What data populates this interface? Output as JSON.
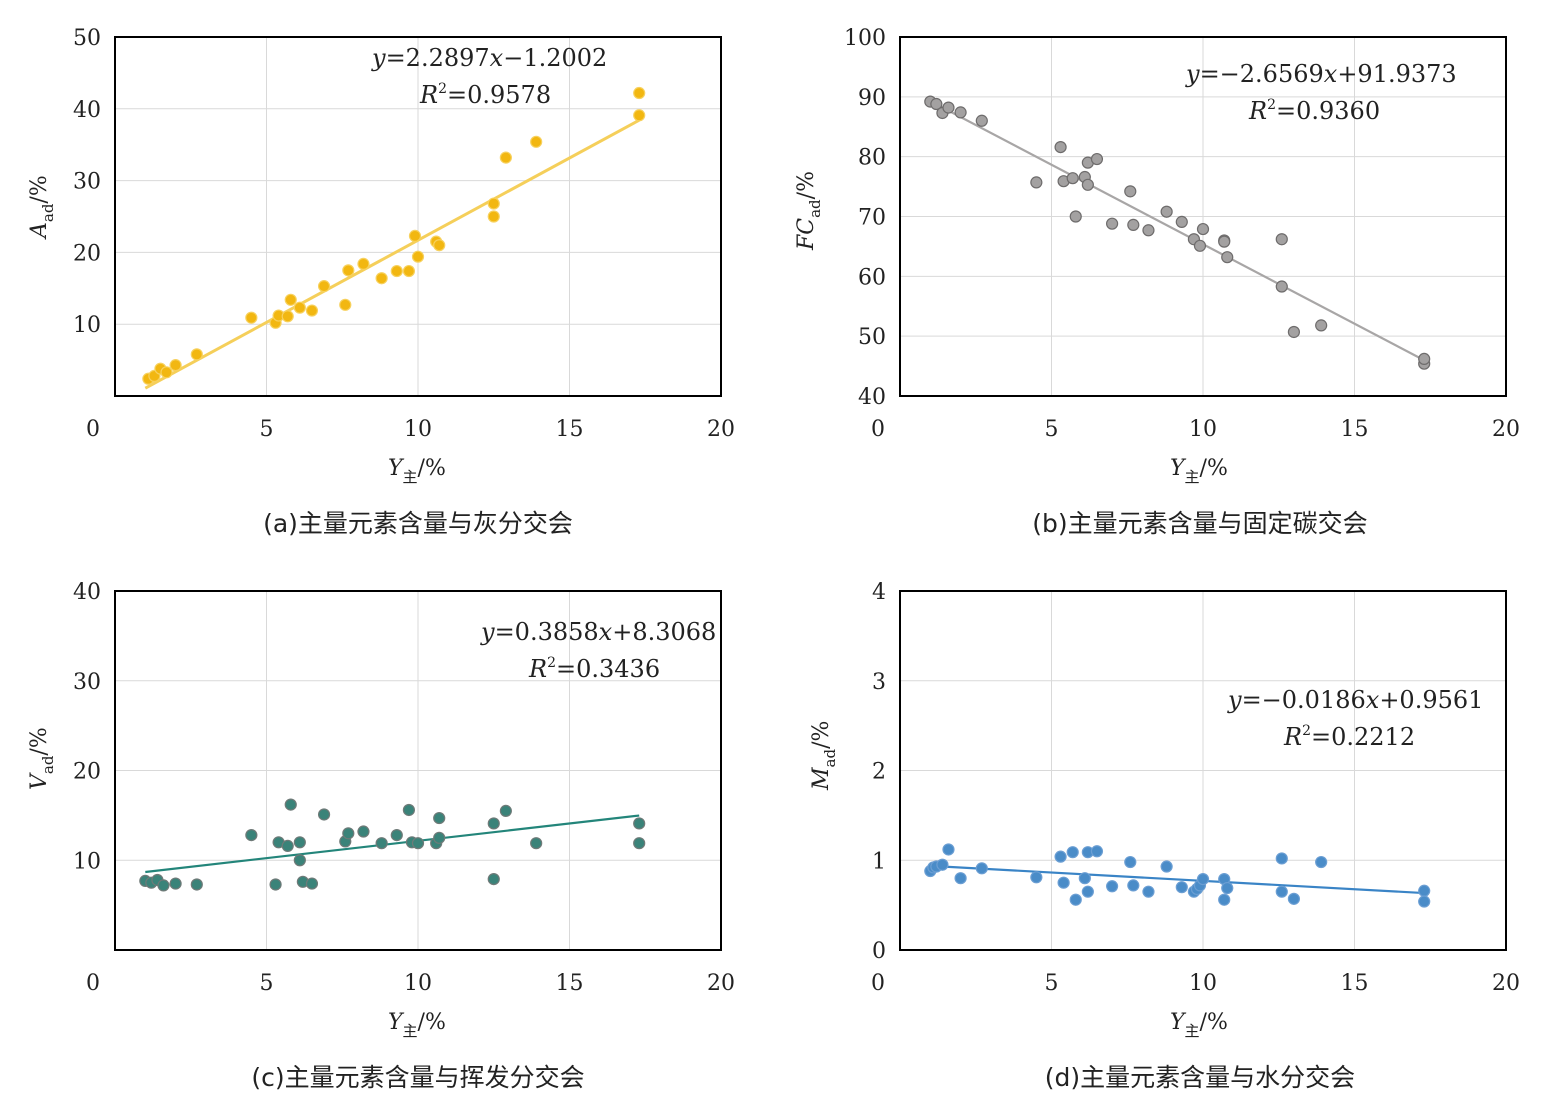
{
  "chart_data": [
    {
      "type": "scatter",
      "title": "(a)主量元素含量与灰分交会",
      "xlabel": {
        "main": "Y",
        "sub": "主",
        "unit": "/%"
      },
      "ylabel": {
        "main": "A",
        "sub": "ad",
        "unit": "/%"
      },
      "xlim": [
        0,
        20
      ],
      "ylim": [
        0,
        50
      ],
      "xticks": [
        "0",
        "5",
        "10",
        "15",
        "20"
      ],
      "yticks": [
        "10",
        "20",
        "30",
        "40",
        "50"
      ],
      "color": "#f2b711",
      "line_color": "#f5cf5a",
      "point_edge": "#f7d15e",
      "equation": {
        "y": "y",
        "eq": "=2.2897",
        "x": "x",
        "rest": "−1.2002"
      },
      "r2": {
        "R": "R",
        "sup": "2",
        "val": "=0.9578"
      },
      "trend": {
        "slope": 2.2897,
        "intercept": -1.2002,
        "x_range": [
          1.0,
          17.3
        ]
      },
      "points": [
        [
          1.1,
          2.4
        ],
        [
          1.3,
          2.8
        ],
        [
          1.5,
          3.8
        ],
        [
          1.7,
          3.3
        ],
        [
          2.0,
          4.3
        ],
        [
          2.7,
          5.8
        ],
        [
          4.5,
          10.9
        ],
        [
          5.3,
          10.2
        ],
        [
          5.4,
          11.2
        ],
        [
          5.7,
          11.1
        ],
        [
          5.8,
          13.4
        ],
        [
          6.1,
          12.3
        ],
        [
          6.5,
          11.9
        ],
        [
          6.9,
          15.3
        ],
        [
          7.6,
          12.7
        ],
        [
          7.7,
          17.5
        ],
        [
          8.2,
          18.4
        ],
        [
          8.8,
          16.4
        ],
        [
          9.3,
          17.4
        ],
        [
          9.7,
          17.4
        ],
        [
          9.9,
          22.3
        ],
        [
          10.0,
          19.4
        ],
        [
          10.6,
          21.5
        ],
        [
          10.7,
          21.0
        ],
        [
          12.5,
          25.0
        ],
        [
          12.5,
          26.8
        ],
        [
          12.9,
          33.2
        ],
        [
          13.9,
          35.4
        ],
        [
          17.3,
          42.2
        ],
        [
          17.3,
          39.1
        ]
      ]
    },
    {
      "type": "scatter",
      "title": "(b)主量元素含量与固定碳交会",
      "xlabel": {
        "main": "Y",
        "sub": "主",
        "unit": "/%"
      },
      "ylabel": {
        "main": "FC",
        "sub": "ad",
        "unit": "/%"
      },
      "xlim": [
        0,
        20
      ],
      "ylim": [
        40,
        100
      ],
      "xticks": [
        "0",
        "5",
        "10",
        "15",
        "20"
      ],
      "yticks": [
        "40",
        "50",
        "60",
        "70",
        "80",
        "90",
        "100"
      ],
      "color": "#a3a1a1",
      "line_color": "#a8a6a6",
      "point_edge": "#6e6c6c",
      "equation": {
        "y": "y",
        "eq": "=−2.6569",
        "x": "x",
        "rest": "+91.9373"
      },
      "r2": {
        "R": "R",
        "sup": "2",
        "val": "=0.9360"
      },
      "trend": {
        "slope": -2.6569,
        "intercept": 91.9373,
        "x_range": [
          1.0,
          17.3
        ]
      },
      "points": [
        [
          1.0,
          89.2
        ],
        [
          1.2,
          88.8
        ],
        [
          1.4,
          87.3
        ],
        [
          1.6,
          88.2
        ],
        [
          2.0,
          87.4
        ],
        [
          2.7,
          86.0
        ],
        [
          4.5,
          75.7
        ],
        [
          5.3,
          81.6
        ],
        [
          5.4,
          75.9
        ],
        [
          5.7,
          76.4
        ],
        [
          5.8,
          70.0
        ],
        [
          6.1,
          76.6
        ],
        [
          6.2,
          75.3
        ],
        [
          6.2,
          79.0
        ],
        [
          6.5,
          79.6
        ],
        [
          7.0,
          68.8
        ],
        [
          7.6,
          74.2
        ],
        [
          7.7,
          68.6
        ],
        [
          8.2,
          67.7
        ],
        [
          8.8,
          70.8
        ],
        [
          9.3,
          69.1
        ],
        [
          9.7,
          66.2
        ],
        [
          9.9,
          65.1
        ],
        [
          10.0,
          67.9
        ],
        [
          10.7,
          66.0
        ],
        [
          10.7,
          65.8
        ],
        [
          10.8,
          63.2
        ],
        [
          12.6,
          66.2
        ],
        [
          12.6,
          58.3
        ],
        [
          13.0,
          50.7
        ],
        [
          13.9,
          51.8
        ],
        [
          17.3,
          45.4
        ],
        [
          17.3,
          46.2
        ]
      ]
    },
    {
      "type": "scatter",
      "title": "(c)主量元素含量与挥发分交会",
      "xlabel": {
        "main": "Y",
        "sub": "主",
        "unit": "/%"
      },
      "ylabel": {
        "main": "V",
        "sub": "ad",
        "unit": "/%"
      },
      "xlim": [
        0,
        20
      ],
      "ylim": [
        0,
        40
      ],
      "xticks": [
        "0",
        "5",
        "10",
        "15",
        "20"
      ],
      "yticks": [
        "10",
        "20",
        "30",
        "40"
      ],
      "color": "#3a8379",
      "line_color": "#23857a",
      "point_edge": "#6f7a78",
      "equation": {
        "y": "y",
        "eq": "=0.3858",
        "x": "x",
        "rest": "+8.3068"
      },
      "r2": {
        "R": "R",
        "sup": "2",
        "val": "=0.3436"
      },
      "trend": {
        "slope": 0.3858,
        "intercept": 8.3068,
        "x_range": [
          1.0,
          17.3
        ]
      },
      "points": [
        [
          1.0,
          7.7
        ],
        [
          1.2,
          7.5
        ],
        [
          1.4,
          7.8
        ],
        [
          1.6,
          7.2
        ],
        [
          2.0,
          7.4
        ],
        [
          2.7,
          7.3
        ],
        [
          4.5,
          12.8
        ],
        [
          5.3,
          7.3
        ],
        [
          5.4,
          12.0
        ],
        [
          5.7,
          11.6
        ],
        [
          5.8,
          16.2
        ],
        [
          6.1,
          10.0
        ],
        [
          6.1,
          12.0
        ],
        [
          6.2,
          7.6
        ],
        [
          6.5,
          7.4
        ],
        [
          6.9,
          15.1
        ],
        [
          7.6,
          12.1
        ],
        [
          7.7,
          13.0
        ],
        [
          8.2,
          13.2
        ],
        [
          8.8,
          11.9
        ],
        [
          9.3,
          12.8
        ],
        [
          9.7,
          15.6
        ],
        [
          9.8,
          12.0
        ],
        [
          10.0,
          11.9
        ],
        [
          10.6,
          11.9
        ],
        [
          10.7,
          12.5
        ],
        [
          10.7,
          14.7
        ],
        [
          12.5,
          14.1
        ],
        [
          12.5,
          7.9
        ],
        [
          12.9,
          15.5
        ],
        [
          13.9,
          11.9
        ],
        [
          17.3,
          11.9
        ],
        [
          17.3,
          14.1
        ]
      ]
    },
    {
      "type": "scatter",
      "title": "(d)主量元素含量与水分交会",
      "xlabel": {
        "main": "Y",
        "sub": "主",
        "unit": "/%"
      },
      "ylabel": {
        "main": "M",
        "sub": "ad",
        "unit": "/%"
      },
      "xlim": [
        0,
        20
      ],
      "ylim": [
        0,
        4
      ],
      "xticks": [
        "0",
        "5",
        "10",
        "15",
        "20"
      ],
      "yticks": [
        "0",
        "1",
        "2",
        "3",
        "4"
      ],
      "color": "#4a8cc8",
      "line_color": "#3a84c6",
      "point_edge": "#6b9ed3",
      "equation": {
        "y": "y",
        "eq": "=−0.0186",
        "x": "x",
        "rest": "+0.9561"
      },
      "r2": {
        "R": "R",
        "sup": "2",
        "val": "=0.2212"
      },
      "trend": {
        "slope": -0.0186,
        "intercept": 0.9561,
        "x_range": [
          1.0,
          17.3
        ]
      },
      "points": [
        [
          1.0,
          0.88
        ],
        [
          1.1,
          0.92
        ],
        [
          1.2,
          0.93
        ],
        [
          1.4,
          0.95
        ],
        [
          1.6,
          1.12
        ],
        [
          2.0,
          0.8
        ],
        [
          2.7,
          0.91
        ],
        [
          4.5,
          0.81
        ],
        [
          5.3,
          1.04
        ],
        [
          5.4,
          0.75
        ],
        [
          5.7,
          1.09
        ],
        [
          5.8,
          0.56
        ],
        [
          6.1,
          0.8
        ],
        [
          6.2,
          0.65
        ],
        [
          6.2,
          1.09
        ],
        [
          6.5,
          1.1
        ],
        [
          7.0,
          0.71
        ],
        [
          7.6,
          0.98
        ],
        [
          7.7,
          0.72
        ],
        [
          8.2,
          0.65
        ],
        [
          8.8,
          0.93
        ],
        [
          9.3,
          0.7
        ],
        [
          9.7,
          0.65
        ],
        [
          9.8,
          0.68
        ],
        [
          9.9,
          0.72
        ],
        [
          10.0,
          0.79
        ],
        [
          10.7,
          0.79
        ],
        [
          10.7,
          0.56
        ],
        [
          10.8,
          0.69
        ],
        [
          12.6,
          1.02
        ],
        [
          12.6,
          0.65
        ],
        [
          13.0,
          0.57
        ],
        [
          13.9,
          0.98
        ],
        [
          17.3,
          0.66
        ],
        [
          17.3,
          0.54
        ]
      ]
    }
  ]
}
